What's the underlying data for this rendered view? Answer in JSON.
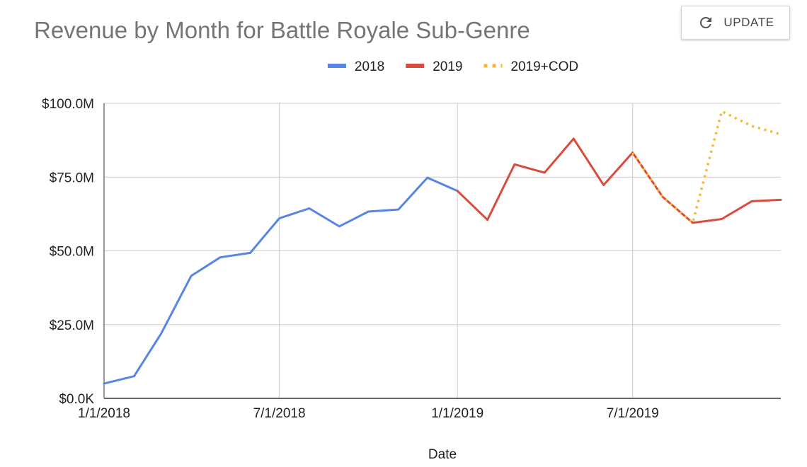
{
  "header": {
    "title": "Revenue by Month for Battle Royale Sub-Genre",
    "update_label": "UPDATE",
    "update_icon": "refresh-icon"
  },
  "chart_data": {
    "type": "line",
    "title": "Revenue by Month for Battle Royale Sub-Genre",
    "xlabel": "Date",
    "ylabel": "",
    "x_type": "date",
    "xlim": [
      "2018-01-01",
      "2019-12-01"
    ],
    "ylim": [
      0,
      100
    ],
    "y_unit": "millions USD",
    "x_ticks": [
      {
        "date": "2018-01-01",
        "label": "1/1/2018"
      },
      {
        "date": "2018-07-01",
        "label": "7/1/2018"
      },
      {
        "date": "2019-01-01",
        "label": "1/1/2019"
      },
      {
        "date": "2019-07-01",
        "label": "7/1/2019"
      }
    ],
    "y_ticks": [
      {
        "value": 0,
        "label": "$0.0K"
      },
      {
        "value": 25,
        "label": "$25.0M"
      },
      {
        "value": 50,
        "label": "$50.0M"
      },
      {
        "value": 75,
        "label": "$75.0M"
      },
      {
        "value": 100,
        "label": "$100.0M"
      }
    ],
    "grid": true,
    "legend_position": "top",
    "series": [
      {
        "name": "2018",
        "color": "#5586e6",
        "style": "solid",
        "points": [
          {
            "x": "2018-01-01",
            "y": 5.0
          },
          {
            "x": "2018-02-01",
            "y": 7.5
          },
          {
            "x": "2018-03-01",
            "y": 22.0
          },
          {
            "x": "2018-04-01",
            "y": 41.5
          },
          {
            "x": "2018-05-01",
            "y": 47.8
          },
          {
            "x": "2018-06-01",
            "y": 49.3
          },
          {
            "x": "2018-07-01",
            "y": 61.0
          },
          {
            "x": "2018-08-01",
            "y": 64.4
          },
          {
            "x": "2018-09-01",
            "y": 58.3
          },
          {
            "x": "2018-10-01",
            "y": 63.3
          },
          {
            "x": "2018-11-01",
            "y": 64.0
          },
          {
            "x": "2018-12-01",
            "y": 74.8
          },
          {
            "x": "2019-01-01",
            "y": 70.3
          }
        ]
      },
      {
        "name": "2019",
        "color": "#d94c3d",
        "style": "solid",
        "points": [
          {
            "x": "2019-01-01",
            "y": 70.3
          },
          {
            "x": "2019-02-01",
            "y": 60.5
          },
          {
            "x": "2019-03-01",
            "y": 79.3
          },
          {
            "x": "2019-04-01",
            "y": 76.5
          },
          {
            "x": "2019-05-01",
            "y": 88.0
          },
          {
            "x": "2019-06-01",
            "y": 72.3
          },
          {
            "x": "2019-07-01",
            "y": 83.3
          },
          {
            "x": "2019-08-01",
            "y": 68.3
          },
          {
            "x": "2019-09-01",
            "y": 59.5
          },
          {
            "x": "2019-10-01",
            "y": 60.8
          },
          {
            "x": "2019-11-01",
            "y": 66.8
          },
          {
            "x": "2019-12-01",
            "y": 67.3
          }
        ]
      },
      {
        "name": "2019+COD",
        "color": "#f6b733",
        "style": "dotted",
        "points": [
          {
            "x": "2019-07-01",
            "y": 83.3
          },
          {
            "x": "2019-08-01",
            "y": 68.3
          },
          {
            "x": "2019-09-01",
            "y": 59.5
          },
          {
            "x": "2019-10-01",
            "y": 97.3
          },
          {
            "x": "2019-11-01",
            "y": 92.3
          },
          {
            "x": "2019-12-01",
            "y": 89.5
          }
        ]
      }
    ]
  }
}
